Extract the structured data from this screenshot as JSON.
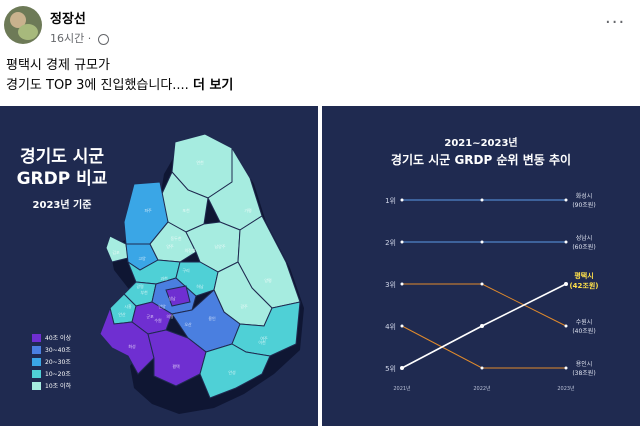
{
  "post": {
    "author": "정장선",
    "time": "16시간",
    "more_icon": "···",
    "text_line1": "평택시 경제 규모가",
    "text_line2": "경기도 TOP 3에 진입했습니다.... ",
    "see_more": "더 보기"
  },
  "map_panel": {
    "title_line1": "경기도 시군",
    "title_line2": "GRDP 비교",
    "subtitle": "2023년 기준",
    "legend": [
      {
        "label": "40조 이상",
        "color": "#6f2fd1"
      },
      {
        "label": "30~40조",
        "color": "#4a7fe0"
      },
      {
        "label": "20~30조",
        "color": "#3aa6e6"
      },
      {
        "label": "10~20조",
        "color": "#4fd0d6"
      },
      {
        "label": "10조 이하",
        "color": "#a6ece0"
      }
    ],
    "region_labels": [
      "포천",
      "연천",
      "동두천",
      "양주",
      "파주",
      "김포",
      "고양",
      "가평",
      "남양주",
      "구리",
      "의정부",
      "하남",
      "양평",
      "광주",
      "여주",
      "이천",
      "용인",
      "안성",
      "평택",
      "화성",
      "수원",
      "오산",
      "안산",
      "시흥",
      "부천",
      "광명",
      "성남",
      "안양",
      "군포",
      "의왕",
      "과천"
    ]
  },
  "chart_panel": {
    "title_line1": "2021~2023년",
    "title_line2": "경기도 시군 GRDP 순위 변동 추이"
  },
  "chart_data": {
    "type": "line",
    "title": "경기도 시군 GRDP 순위 변동 추이",
    "subtitle": "2021~2023년",
    "x": [
      "2021년",
      "2022년",
      "2023년"
    ],
    "y_ticks": [
      "1위",
      "2위",
      "3위",
      "4위",
      "5위"
    ],
    "ylim": [
      1,
      5
    ],
    "series": [
      {
        "name": "화성시",
        "values": [
          1,
          1,
          1
        ],
        "end_label": "(90조원)",
        "color": "#5b9be6"
      },
      {
        "name": "성남시",
        "values": [
          2,
          2,
          2
        ],
        "end_label": "(60조원)",
        "color": "#5b9be6"
      },
      {
        "name": "수원시",
        "values": [
          3,
          3,
          4
        ],
        "end_label": "(40조원)",
        "color": "#e08a2c"
      },
      {
        "name": "용인시",
        "values": [
          4,
          5,
          5
        ],
        "end_label": "(38조원)",
        "color": "#e08a2c"
      },
      {
        "name": "평택시",
        "values": [
          5,
          4,
          3
        ],
        "end_label": "(42조원)",
        "color": "#ffffff",
        "highlight": true
      }
    ]
  }
}
